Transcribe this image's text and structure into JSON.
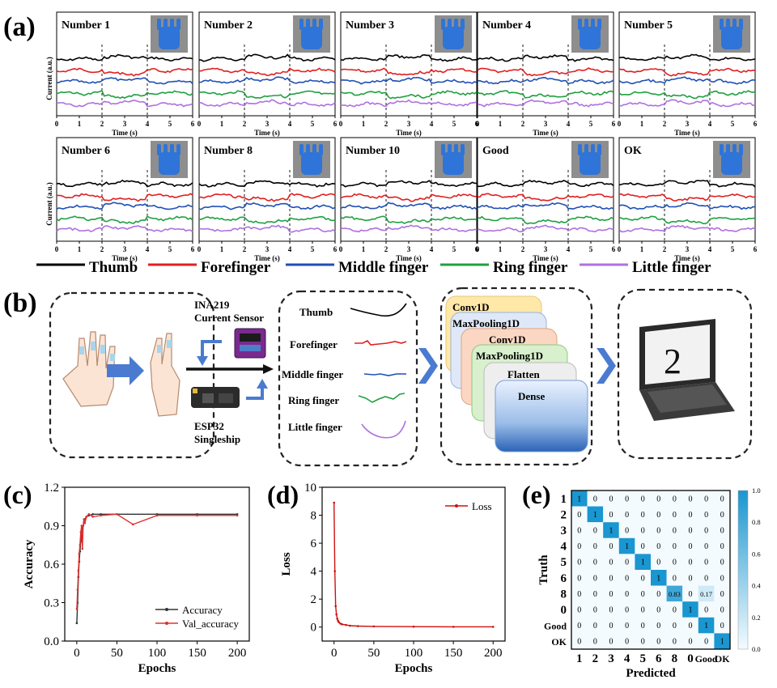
{
  "panel_labels": {
    "a": "(a)",
    "b": "(b)",
    "c": "(c)",
    "d": "(d)",
    "e": "(e)"
  },
  "panel_a": {
    "y_label": "Current (a.u.)",
    "x_label": "Time (s)",
    "x_ticks": [
      "0",
      "1",
      "2",
      "3",
      "4",
      "5",
      "6"
    ],
    "gestures": [
      "Number 1",
      "Number 2",
      "Number 3",
      "Number 4",
      "Number 5",
      "Number 6",
      "Number 8",
      "Number 10",
      "Good",
      "OK"
    ],
    "legend": [
      {
        "name": "Thumb",
        "color": "#000000"
      },
      {
        "name": "Forefinger",
        "color": "#e02020"
      },
      {
        "name": "Middle finger",
        "color": "#1f4fb5"
      },
      {
        "name": "Ring finger",
        "color": "#1fa040"
      },
      {
        "name": "Little finger",
        "color": "#b070e0"
      }
    ]
  },
  "panel_b": {
    "sensor_title": "INA219",
    "sensor_subtitle": "Current Sensor",
    "board_title": "ESP32",
    "board_subtitle": "Singleship",
    "signals": [
      "Thumb",
      "Forefinger",
      "Middle finger",
      "Ring finger",
      "Little finger"
    ],
    "layers": [
      "Conv1D",
      "MaxPooling1D",
      "Conv1D",
      "MaxPooling1D",
      "Flatten",
      "Dense"
    ],
    "screen_digit": "2"
  },
  "chart_data": [
    {
      "type": "line",
      "title": "",
      "xlabel": "Epochs",
      "ylabel": "Accuracy",
      "xlim": [
        -15,
        215
      ],
      "ylim": [
        0.0,
        1.2
      ],
      "x_ticks": [
        0,
        50,
        100,
        150,
        200
      ],
      "y_ticks": [
        0.0,
        0.3,
        0.6,
        0.9,
        1.2
      ],
      "series": [
        {
          "name": "Accuracy",
          "color": "#333333",
          "x": [
            0,
            1,
            2,
            3,
            4,
            5,
            6,
            7,
            8,
            9,
            10,
            12,
            15,
            20,
            30,
            50,
            100,
            150,
            200
          ],
          "values": [
            0.14,
            0.3,
            0.5,
            0.62,
            0.7,
            0.78,
            0.84,
            0.88,
            0.9,
            0.93,
            0.95,
            0.97,
            0.98,
            0.99,
            0.99,
            0.99,
            0.99,
            0.99,
            0.99
          ]
        },
        {
          "name": "Val_accuracy",
          "color": "#e03030",
          "x": [
            0,
            1,
            2,
            3,
            4,
            5,
            6,
            7,
            8,
            9,
            10,
            12,
            15,
            20,
            30,
            50,
            70,
            100,
            150,
            200
          ],
          "values": [
            0.25,
            0.4,
            0.55,
            0.68,
            0.75,
            0.85,
            0.9,
            0.72,
            0.9,
            0.95,
            0.92,
            0.97,
            0.99,
            0.97,
            0.98,
            0.99,
            0.91,
            0.98,
            0.98,
            0.98
          ]
        }
      ]
    },
    {
      "type": "line",
      "title": "",
      "xlabel": "Epochs",
      "ylabel": "Loss",
      "xlim": [
        -15,
        215
      ],
      "ylim": [
        -1,
        10
      ],
      "x_ticks": [
        0,
        50,
        100,
        150,
        200
      ],
      "y_ticks": [
        0,
        2,
        4,
        6,
        8,
        10
      ],
      "series": [
        {
          "name": "Loss",
          "color": "#d01010",
          "x": [
            0,
            1,
            2,
            3,
            4,
            5,
            6,
            8,
            10,
            15,
            20,
            30,
            50,
            100,
            150,
            200
          ],
          "values": [
            8.9,
            4.0,
            1.5,
            0.9,
            0.6,
            0.45,
            0.35,
            0.25,
            0.2,
            0.15,
            0.1,
            0.07,
            0.05,
            0.03,
            0.02,
            0.02
          ]
        }
      ]
    },
    {
      "type": "heatmap",
      "title": "",
      "xlabel": "Predicted",
      "ylabel": "Truth",
      "row_labels": [
        "1",
        "2",
        "3",
        "4",
        "5",
        "6",
        "8",
        "0",
        "Good",
        "OK"
      ],
      "col_labels": [
        "1",
        "2",
        "3",
        "4",
        "5",
        "6",
        "8",
        "0",
        "Good",
        "OK"
      ],
      "values": [
        [
          1,
          0,
          0,
          0,
          0,
          0,
          0,
          0,
          0,
          0
        ],
        [
          0,
          1,
          0,
          0,
          0,
          0,
          0,
          0,
          0,
          0
        ],
        [
          0,
          0,
          1,
          0,
          0,
          0,
          0,
          0,
          0,
          0
        ],
        [
          0,
          0,
          0,
          1,
          0,
          0,
          0,
          0,
          0,
          0
        ],
        [
          0,
          0,
          0,
          0,
          1,
          0,
          0,
          0,
          0,
          0
        ],
        [
          0,
          0,
          0,
          0,
          0,
          1,
          0,
          0,
          0,
          0
        ],
        [
          0,
          0,
          0,
          0,
          0,
          0,
          0.83,
          0,
          0.17,
          0
        ],
        [
          0,
          0,
          0,
          0,
          0,
          0,
          0,
          1,
          0,
          0
        ],
        [
          0,
          0,
          0,
          0,
          0,
          0,
          0,
          0,
          1,
          0
        ],
        [
          0,
          0,
          0,
          0,
          0,
          0,
          0,
          0,
          0,
          1
        ]
      ],
      "colorbar_ticks": [
        "0.0",
        "0.2",
        "0.4",
        "0.6",
        "0.8",
        "1.0"
      ],
      "colorbar_range": [
        0,
        1
      ]
    }
  ]
}
